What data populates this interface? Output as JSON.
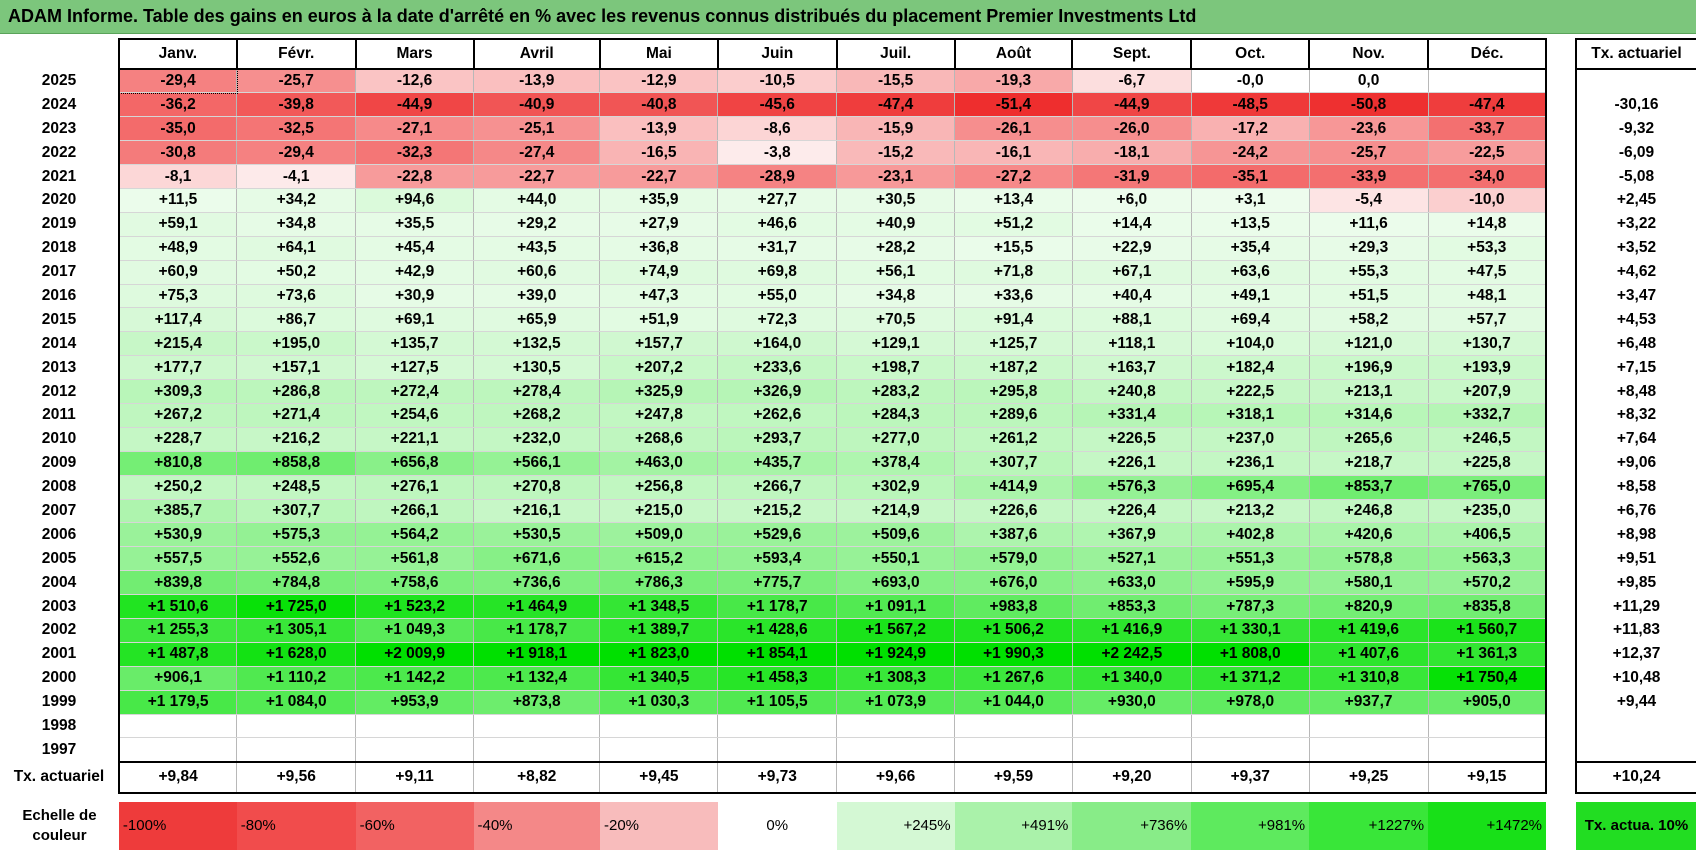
{
  "title": "ADAM Informe. Table des gains en euros à la date d'arrêté en % avec les revenus connus distribués du placement Premier Investments Ltd",
  "months": [
    "Janv.",
    "Févr.",
    "Mars",
    "Avril",
    "Mai",
    "Juin",
    "Juil.",
    "Août",
    "Sept.",
    "Oct.",
    "Nov.",
    "Déc."
  ],
  "side_header": "Tx. actuariel",
  "rows": [
    {
      "year": "2025",
      "values": [
        "-29,4",
        "-25,7",
        "-12,6",
        "-13,9",
        "-12,9",
        "-10,5",
        "-15,5",
        "-19,3",
        "-6,7",
        "-0,0",
        "0,0",
        ""
      ],
      "rate": ""
    },
    {
      "year": "2024",
      "values": [
        "-36,2",
        "-39,8",
        "-44,9",
        "-40,9",
        "-40,8",
        "-45,6",
        "-47,4",
        "-51,4",
        "-44,9",
        "-48,5",
        "-50,8",
        "-47,4"
      ],
      "rate": "-30,16"
    },
    {
      "year": "2023",
      "values": [
        "-35,0",
        "-32,5",
        "-27,1",
        "-25,1",
        "-13,9",
        "-8,6",
        "-15,9",
        "-26,1",
        "-26,0",
        "-17,2",
        "-23,6",
        "-33,7"
      ],
      "rate": "-9,32"
    },
    {
      "year": "2022",
      "values": [
        "-30,8",
        "-29,4",
        "-32,3",
        "-27,4",
        "-16,5",
        "-3,8",
        "-15,2",
        "-16,1",
        "-18,1",
        "-24,2",
        "-25,7",
        "-22,5"
      ],
      "rate": "-6,09"
    },
    {
      "year": "2021",
      "values": [
        "-8,1",
        "-4,1",
        "-22,8",
        "-22,7",
        "-22,7",
        "-28,9",
        "-23,1",
        "-27,2",
        "-31,9",
        "-35,1",
        "-33,9",
        "-34,0"
      ],
      "rate": "-5,08"
    },
    {
      "year": "2020",
      "values": [
        "+11,5",
        "+34,2",
        "+94,6",
        "+44,0",
        "+35,9",
        "+27,7",
        "+30,5",
        "+13,4",
        "+6,0",
        "+3,1",
        "-5,4",
        "-10,0"
      ],
      "rate": "+2,45"
    },
    {
      "year": "2019",
      "values": [
        "+59,1",
        "+34,8",
        "+35,5",
        "+29,2",
        "+27,9",
        "+46,6",
        "+40,9",
        "+51,2",
        "+14,4",
        "+13,5",
        "+11,6",
        "+14,8"
      ],
      "rate": "+3,22"
    },
    {
      "year": "2018",
      "values": [
        "+48,9",
        "+64,1",
        "+45,4",
        "+43,5",
        "+36,8",
        "+31,7",
        "+28,2",
        "+15,5",
        "+22,9",
        "+35,4",
        "+29,3",
        "+53,3"
      ],
      "rate": "+3,52"
    },
    {
      "year": "2017",
      "values": [
        "+60,9",
        "+50,2",
        "+42,9",
        "+60,6",
        "+74,9",
        "+69,8",
        "+56,1",
        "+71,8",
        "+67,1",
        "+63,6",
        "+55,3",
        "+47,5"
      ],
      "rate": "+4,62"
    },
    {
      "year": "2016",
      "values": [
        "+75,3",
        "+73,6",
        "+30,9",
        "+39,0",
        "+47,3",
        "+55,0",
        "+34,8",
        "+33,6",
        "+40,4",
        "+49,1",
        "+51,5",
        "+48,1"
      ],
      "rate": "+3,47"
    },
    {
      "year": "2015",
      "values": [
        "+117,4",
        "+86,7",
        "+69,1",
        "+65,9",
        "+51,9",
        "+72,3",
        "+70,5",
        "+91,4",
        "+88,1",
        "+69,4",
        "+58,2",
        "+57,7"
      ],
      "rate": "+4,53"
    },
    {
      "year": "2014",
      "values": [
        "+215,4",
        "+195,0",
        "+135,7",
        "+132,5",
        "+157,7",
        "+164,0",
        "+129,1",
        "+125,7",
        "+118,1",
        "+104,0",
        "+121,0",
        "+130,7"
      ],
      "rate": "+6,48"
    },
    {
      "year": "2013",
      "values": [
        "+177,7",
        "+157,1",
        "+127,5",
        "+130,5",
        "+207,2",
        "+233,6",
        "+198,7",
        "+187,2",
        "+163,7",
        "+182,4",
        "+196,9",
        "+193,9"
      ],
      "rate": "+7,15"
    },
    {
      "year": "2012",
      "values": [
        "+309,3",
        "+286,8",
        "+272,4",
        "+278,4",
        "+325,9",
        "+326,9",
        "+283,2",
        "+295,8",
        "+240,8",
        "+222,5",
        "+213,1",
        "+207,9"
      ],
      "rate": "+8,48"
    },
    {
      "year": "2011",
      "values": [
        "+267,2",
        "+271,4",
        "+254,6",
        "+268,2",
        "+247,8",
        "+262,6",
        "+284,3",
        "+289,6",
        "+331,4",
        "+318,1",
        "+314,6",
        "+332,7"
      ],
      "rate": "+8,32"
    },
    {
      "year": "2010",
      "values": [
        "+228,7",
        "+216,2",
        "+221,1",
        "+232,0",
        "+268,6",
        "+293,7",
        "+277,0",
        "+261,2",
        "+226,5",
        "+237,0",
        "+265,6",
        "+246,5"
      ],
      "rate": "+7,64"
    },
    {
      "year": "2009",
      "values": [
        "+810,8",
        "+858,8",
        "+656,8",
        "+566,1",
        "+463,0",
        "+435,7",
        "+378,4",
        "+307,7",
        "+226,1",
        "+236,1",
        "+218,7",
        "+225,8"
      ],
      "rate": "+9,06"
    },
    {
      "year": "2008",
      "values": [
        "+250,2",
        "+248,5",
        "+276,1",
        "+270,8",
        "+256,8",
        "+266,7",
        "+302,9",
        "+414,9",
        "+576,3",
        "+695,4",
        "+853,7",
        "+765,0"
      ],
      "rate": "+8,58"
    },
    {
      "year": "2007",
      "values": [
        "+385,7",
        "+307,7",
        "+266,1",
        "+216,1",
        "+215,0",
        "+215,2",
        "+214,9",
        "+226,6",
        "+226,4",
        "+213,2",
        "+246,8",
        "+235,0"
      ],
      "rate": "+6,76"
    },
    {
      "year": "2006",
      "values": [
        "+530,9",
        "+575,3",
        "+564,2",
        "+530,5",
        "+509,0",
        "+529,6",
        "+509,6",
        "+387,6",
        "+367,9",
        "+402,8",
        "+420,6",
        "+406,5"
      ],
      "rate": "+8,98"
    },
    {
      "year": "2005",
      "values": [
        "+557,5",
        "+552,6",
        "+561,8",
        "+671,6",
        "+615,2",
        "+593,4",
        "+550,1",
        "+579,0",
        "+527,1",
        "+551,3",
        "+578,8",
        "+563,3"
      ],
      "rate": "+9,51"
    },
    {
      "year": "2004",
      "values": [
        "+839,8",
        "+784,8",
        "+758,6",
        "+736,6",
        "+786,3",
        "+775,7",
        "+693,0",
        "+676,0",
        "+633,0",
        "+595,9",
        "+580,1",
        "+570,2"
      ],
      "rate": "+9,85"
    },
    {
      "year": "2003",
      "values": [
        "+1 510,6",
        "+1 725,0",
        "+1 523,2",
        "+1 464,9",
        "+1 348,5",
        "+1 178,7",
        "+1 091,1",
        "+983,8",
        "+853,3",
        "+787,3",
        "+820,9",
        "+835,8"
      ],
      "rate": "+11,29"
    },
    {
      "year": "2002",
      "values": [
        "+1 255,3",
        "+1 305,1",
        "+1 049,3",
        "+1 178,7",
        "+1 389,7",
        "+1 428,6",
        "+1 567,2",
        "+1 506,2",
        "+1 416,9",
        "+1 330,1",
        "+1 419,6",
        "+1 560,7"
      ],
      "rate": "+11,83"
    },
    {
      "year": "2001",
      "values": [
        "+1 487,8",
        "+1 628,0",
        "+2 009,9",
        "+1 918,1",
        "+1 823,0",
        "+1 854,1",
        "+1 924,9",
        "+1 990,3",
        "+2 242,5",
        "+1 808,0",
        "+1 407,6",
        "+1 361,3"
      ],
      "rate": "+12,37"
    },
    {
      "year": "2000",
      "values": [
        "+906,1",
        "+1 110,2",
        "+1 142,2",
        "+1 132,4",
        "+1 340,5",
        "+1 458,3",
        "+1 308,3",
        "+1 267,6",
        "+1 340,0",
        "+1 371,2",
        "+1 310,8",
        "+1 750,4"
      ],
      "rate": "+10,48"
    },
    {
      "year": "1999",
      "values": [
        "+1 179,5",
        "+1 084,0",
        "+953,9",
        "+873,8",
        "+1 030,3",
        "+1 105,5",
        "+1 073,9",
        "+1 044,0",
        "+930,0",
        "+978,0",
        "+937,7",
        "+905,0"
      ],
      "rate": "+9,44"
    },
    {
      "year": "1998",
      "values": [
        "",
        "",
        "",
        "",
        "",
        "",
        "",
        "",
        "",
        "",
        "",
        ""
      ],
      "rate": ""
    },
    {
      "year": "1997",
      "values": [
        "",
        "",
        "",
        "",
        "",
        "",
        "",
        "",
        "",
        "",
        "",
        ""
      ],
      "rate": ""
    }
  ],
  "footer_label": "Tx. actuariel",
  "footer_values": [
    "+9,84",
    "+9,56",
    "+9,11",
    "+8,82",
    "+9,45",
    "+9,73",
    "+9,66",
    "+9,59",
    "+9,20",
    "+9,37",
    "+9,25",
    "+9,15"
  ],
  "footer_total": "+10,24",
  "scale_label": "Echelle de couleur",
  "scale": [
    {
      "label": "-100%",
      "color": "#ee3b3b"
    },
    {
      "label": "-80%",
      "color": "#f14c4c"
    },
    {
      "label": "-60%",
      "color": "#f26262"
    },
    {
      "label": "-40%",
      "color": "#f48888"
    },
    {
      "label": "-20%",
      "color": "#f8bcbc"
    },
    {
      "label": "0%",
      "color": "#ffffff"
    },
    {
      "label": "+245%",
      "color": "#d4f8d4"
    },
    {
      "label": "+491%",
      "color": "#aaf2aa"
    },
    {
      "label": "+736%",
      "color": "#88ec88"
    },
    {
      "label": "+981%",
      "color": "#5eea5e"
    },
    {
      "label": "+1227%",
      "color": "#39e639"
    },
    {
      "label": "+1472%",
      "color": "#18e018"
    }
  ],
  "scale_side": "Tx. actua. 10%"
}
